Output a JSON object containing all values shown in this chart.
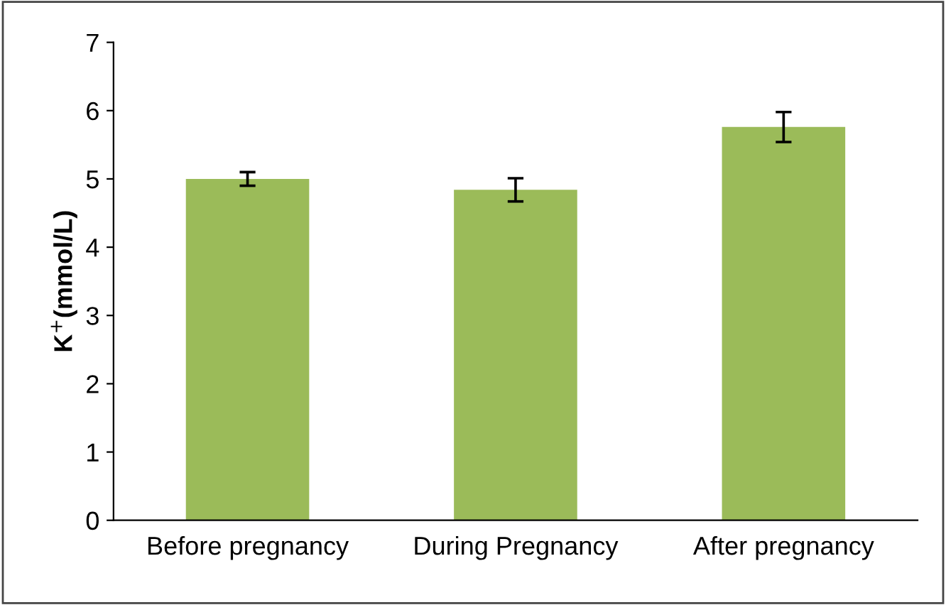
{
  "chart_data": {
    "type": "bar",
    "ylabel": "K$^{+}$(mmol/L)",
    "categories": [
      "Before pregnancy",
      "During Pregnancy",
      "After pregnancy"
    ],
    "values": [
      5.0,
      4.84,
      5.76
    ],
    "errors": [
      0.1,
      0.17,
      0.22
    ],
    "color": "#9bbb59",
    "ylim": [
      0,
      7
    ],
    "yticks": [
      0,
      1,
      2,
      3,
      4,
      5,
      6,
      7
    ],
    "grid": false
  }
}
